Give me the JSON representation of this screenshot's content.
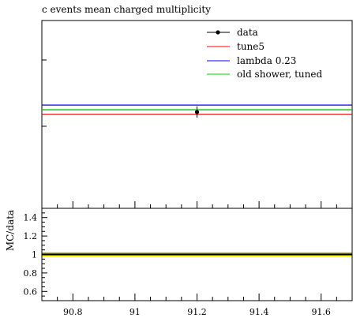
{
  "chart_data": [
    {
      "type": "line",
      "panel": "main",
      "title": "c events mean charged multiplicity",
      "xlim": [
        90.7,
        91.7
      ],
      "xticks_major": [
        90.8,
        91.0,
        91.2,
        91.4,
        91.6
      ],
      "grid": false,
      "legend_position": "top-right",
      "series": [
        {
          "name": "data",
          "kind": "point",
          "x": 91.2,
          "y": 16.05,
          "yerr": 0.12,
          "color": "#000000"
        },
        {
          "name": "tune5",
          "kind": "flat-line",
          "y": 16.0,
          "color": "#ff0000"
        },
        {
          "name": "lambda 0.23",
          "kind": "flat-line",
          "y": 16.2,
          "color": "#0000ff"
        },
        {
          "name": "old shower, tuned",
          "kind": "flat-line",
          "y": 16.1,
          "color": "#00cc00"
        }
      ]
    },
    {
      "type": "line",
      "panel": "ratio",
      "ylabel": "MC/data",
      "ylim": [
        0.5,
        1.5
      ],
      "yticks": [
        "1.4",
        "1.2",
        "1",
        "0.8",
        "0.6"
      ],
      "xlim": [
        90.7,
        91.7
      ],
      "xticks": [
        "90.8",
        "91",
        "91.2",
        "91.4",
        "91.6"
      ],
      "uncertainty_band": {
        "low": 0.975,
        "high": 1.025,
        "color": "#ffff00"
      },
      "series": [
        {
          "name": "tune5",
          "y": 0.995,
          "color": "#ff0000"
        },
        {
          "name": "lambda 0.23",
          "y": 1.01,
          "color": "#0000ff"
        },
        {
          "name": "old shower, tuned",
          "y": 1.005,
          "color": "#00cc00"
        },
        {
          "name": "data",
          "y": 1.0,
          "color": "#000000"
        }
      ]
    }
  ]
}
